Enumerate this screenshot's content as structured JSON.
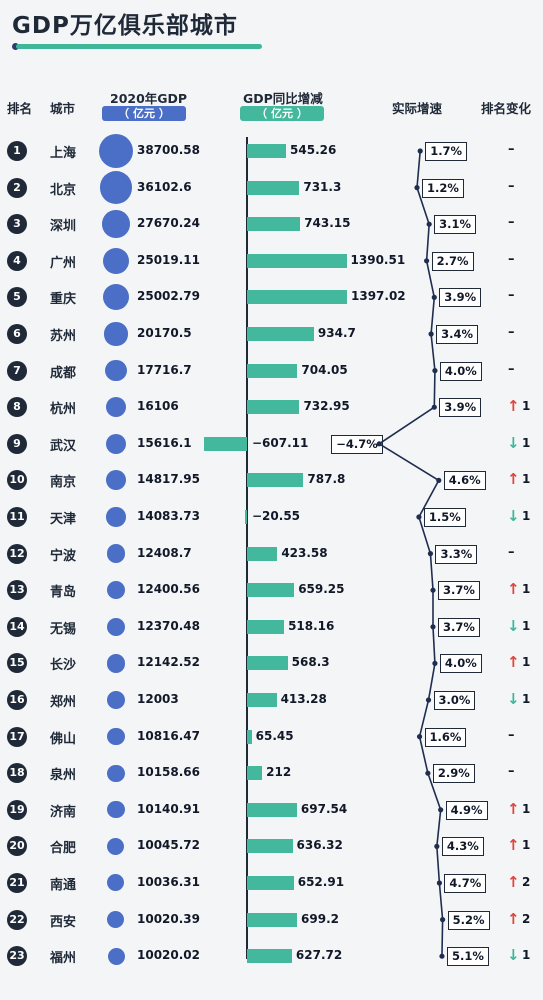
{
  "title": "GDP万亿俱乐部城市",
  "headers": {
    "rank": "排名",
    "city": "城市",
    "gdp": "2020年GDP",
    "gdp_unit": "（ 亿元 ）",
    "change": "GDP同比增减",
    "change_unit": "（ 亿元 ）",
    "growth": "实际增速",
    "rank_change": "排名变化"
  },
  "colors": {
    "bubble": "#4b6fc6",
    "bar": "#43b89c",
    "up": "#e0473b",
    "down": "#3fb89a",
    "line": "#1f2d4f"
  },
  "chart_data": {
    "type": "table",
    "rows": [
      {
        "rank": "1",
        "city": "上海",
        "gdp": "38700.58",
        "change": "545.26",
        "growth": "1.7%",
        "rank_change": "–",
        "dir": "none",
        "delta": ""
      },
      {
        "rank": "2",
        "city": "北京",
        "gdp": "36102.6",
        "change": "731.3",
        "growth": "1.2%",
        "rank_change": "–",
        "dir": "none",
        "delta": ""
      },
      {
        "rank": "3",
        "city": "深圳",
        "gdp": "27670.24",
        "change": "743.15",
        "growth": "3.1%",
        "rank_change": "–",
        "dir": "none",
        "delta": ""
      },
      {
        "rank": "4",
        "city": "广州",
        "gdp": "25019.11",
        "change": "1390.51",
        "growth": "2.7%",
        "rank_change": "–",
        "dir": "none",
        "delta": ""
      },
      {
        "rank": "5",
        "city": "重庆",
        "gdp": "25002.79",
        "change": "1397.02",
        "growth": "3.9%",
        "rank_change": "–",
        "dir": "none",
        "delta": ""
      },
      {
        "rank": "6",
        "city": "苏州",
        "gdp": "20170.5",
        "change": "934.7",
        "growth": "3.4%",
        "rank_change": "–",
        "dir": "none",
        "delta": ""
      },
      {
        "rank": "7",
        "city": "成都",
        "gdp": "17716.7",
        "change": "704.05",
        "growth": "4.0%",
        "rank_change": "–",
        "dir": "none",
        "delta": ""
      },
      {
        "rank": "8",
        "city": "杭州",
        "gdp": "16106",
        "change": "732.95",
        "growth": "3.9%",
        "rank_change": "",
        "dir": "up",
        "delta": "1"
      },
      {
        "rank": "9",
        "city": "武汉",
        "gdp": "15616.1",
        "change": "−607.11",
        "growth": "−4.7%",
        "rank_change": "",
        "dir": "down",
        "delta": "1"
      },
      {
        "rank": "10",
        "city": "南京",
        "gdp": "14817.95",
        "change": "787.8",
        "growth": "4.6%",
        "rank_change": "",
        "dir": "up",
        "delta": "1"
      },
      {
        "rank": "11",
        "city": "天津",
        "gdp": "14083.73",
        "change": "−20.55",
        "growth": "1.5%",
        "rank_change": "",
        "dir": "down",
        "delta": "1"
      },
      {
        "rank": "12",
        "city": "宁波",
        "gdp": "12408.7",
        "change": "423.58",
        "growth": "3.3%",
        "rank_change": "–",
        "dir": "none",
        "delta": ""
      },
      {
        "rank": "13",
        "city": "青岛",
        "gdp": "12400.56",
        "change": "659.25",
        "growth": "3.7%",
        "rank_change": "",
        "dir": "up",
        "delta": "1"
      },
      {
        "rank": "14",
        "city": "无锡",
        "gdp": "12370.48",
        "change": "518.16",
        "growth": "3.7%",
        "rank_change": "",
        "dir": "down",
        "delta": "1"
      },
      {
        "rank": "15",
        "city": "长沙",
        "gdp": "12142.52",
        "change": "568.3",
        "growth": "4.0%",
        "rank_change": "",
        "dir": "up",
        "delta": "1"
      },
      {
        "rank": "16",
        "city": "郑州",
        "gdp": "12003",
        "change": "413.28",
        "growth": "3.0%",
        "rank_change": "",
        "dir": "down",
        "delta": "1"
      },
      {
        "rank": "17",
        "city": "佛山",
        "gdp": "10816.47",
        "change": "65.45",
        "growth": "1.6%",
        "rank_change": "–",
        "dir": "none",
        "delta": ""
      },
      {
        "rank": "18",
        "city": "泉州",
        "gdp": "10158.66",
        "change": "212",
        "growth": "2.9%",
        "rank_change": "–",
        "dir": "none",
        "delta": ""
      },
      {
        "rank": "19",
        "city": "济南",
        "gdp": "10140.91",
        "change": "697.54",
        "growth": "4.9%",
        "rank_change": "",
        "dir": "up",
        "delta": "1"
      },
      {
        "rank": "20",
        "city": "合肥",
        "gdp": "10045.72",
        "change": "636.32",
        "growth": "4.3%",
        "rank_change": "",
        "dir": "up",
        "delta": "1"
      },
      {
        "rank": "21",
        "city": "南通",
        "gdp": "10036.31",
        "change": "652.91",
        "growth": "4.7%",
        "rank_change": "",
        "dir": "up",
        "delta": "2"
      },
      {
        "rank": "22",
        "city": "西安",
        "gdp": "10020.39",
        "change": "699.2",
        "growth": "5.2%",
        "rank_change": "",
        "dir": "up",
        "delta": "2"
      },
      {
        "rank": "23",
        "city": "福州",
        "gdp": "10020.02",
        "change": "627.72",
        "growth": "5.1%",
        "rank_change": "",
        "dir": "down",
        "delta": "1"
      }
    ]
  }
}
